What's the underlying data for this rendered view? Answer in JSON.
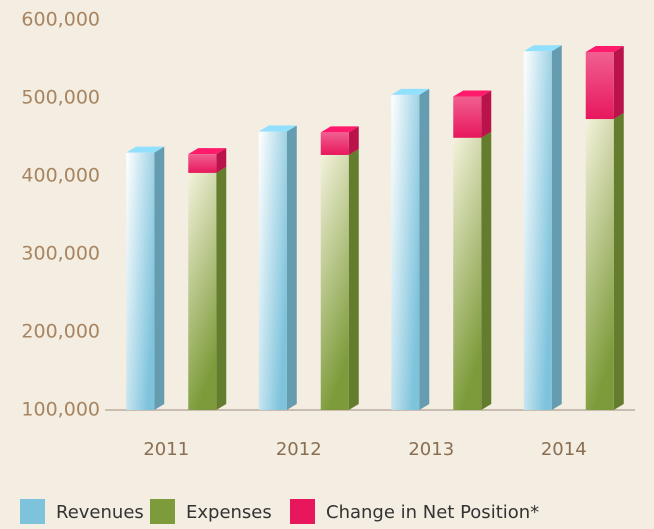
{
  "chart_data": {
    "type": "bar3d",
    "categories": [
      "2011",
      "2012",
      "2013",
      "2014"
    ],
    "series": [
      {
        "name": "Revenues",
        "color": "#7ec3dc",
        "values": [
          430000,
          457000,
          504000,
          560000
        ]
      },
      {
        "name": "Expenses",
        "color": "#7d9b3a",
        "values": [
          404000,
          427000,
          449000,
          473000
        ],
        "stack": "b"
      },
      {
        "name": "Change in Net Position*",
        "color": "#e8175d",
        "values": [
          24000,
          29000,
          53000,
          86000
        ],
        "stack": "b"
      }
    ],
    "ylim": [
      100000,
      600000
    ],
    "yticks": [
      {
        "value": 100000,
        "label": "100,000"
      },
      {
        "value": 200000,
        "label": "200,000"
      },
      {
        "value": 300000,
        "label": "300,000"
      },
      {
        "value": 400000,
        "label": "400,000"
      },
      {
        "value": 500000,
        "label": "500,000"
      },
      {
        "value": 600000,
        "label": "600,000"
      }
    ]
  }
}
